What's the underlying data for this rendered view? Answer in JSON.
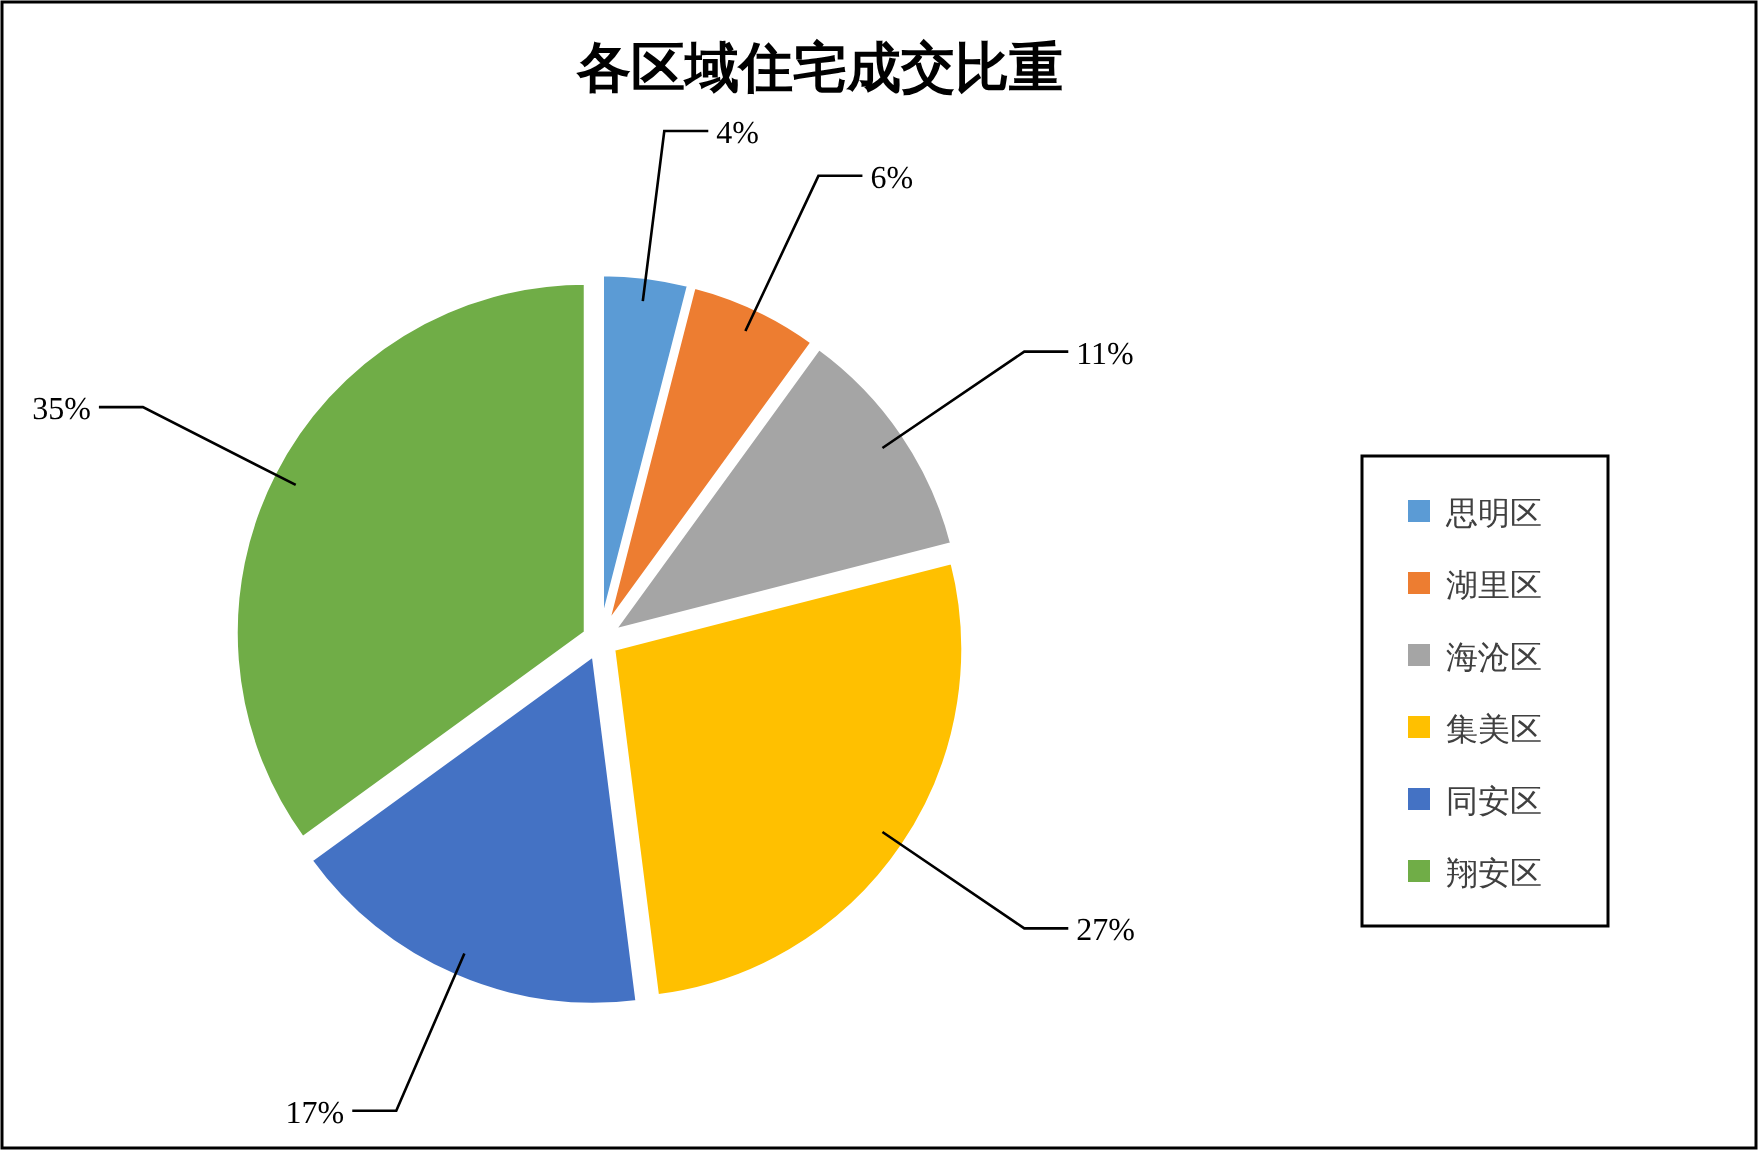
{
  "chart_data": {
    "type": "pie",
    "title": "各区域住宅成交比重",
    "categories": [
      "思明区",
      "湖里区",
      "海沧区",
      "集美区",
      "同安区",
      "翔安区"
    ],
    "values": [
      4,
      6,
      11,
      27,
      17,
      35
    ],
    "colors": [
      "#5b9bd5",
      "#ed7d31",
      "#a5a5a5",
      "#ffc000",
      "#4472c4",
      "#70ad47"
    ],
    "value_labels": [
      "4%",
      "6%",
      "11%",
      "27%",
      "17%",
      "35%"
    ],
    "legend": "right"
  }
}
